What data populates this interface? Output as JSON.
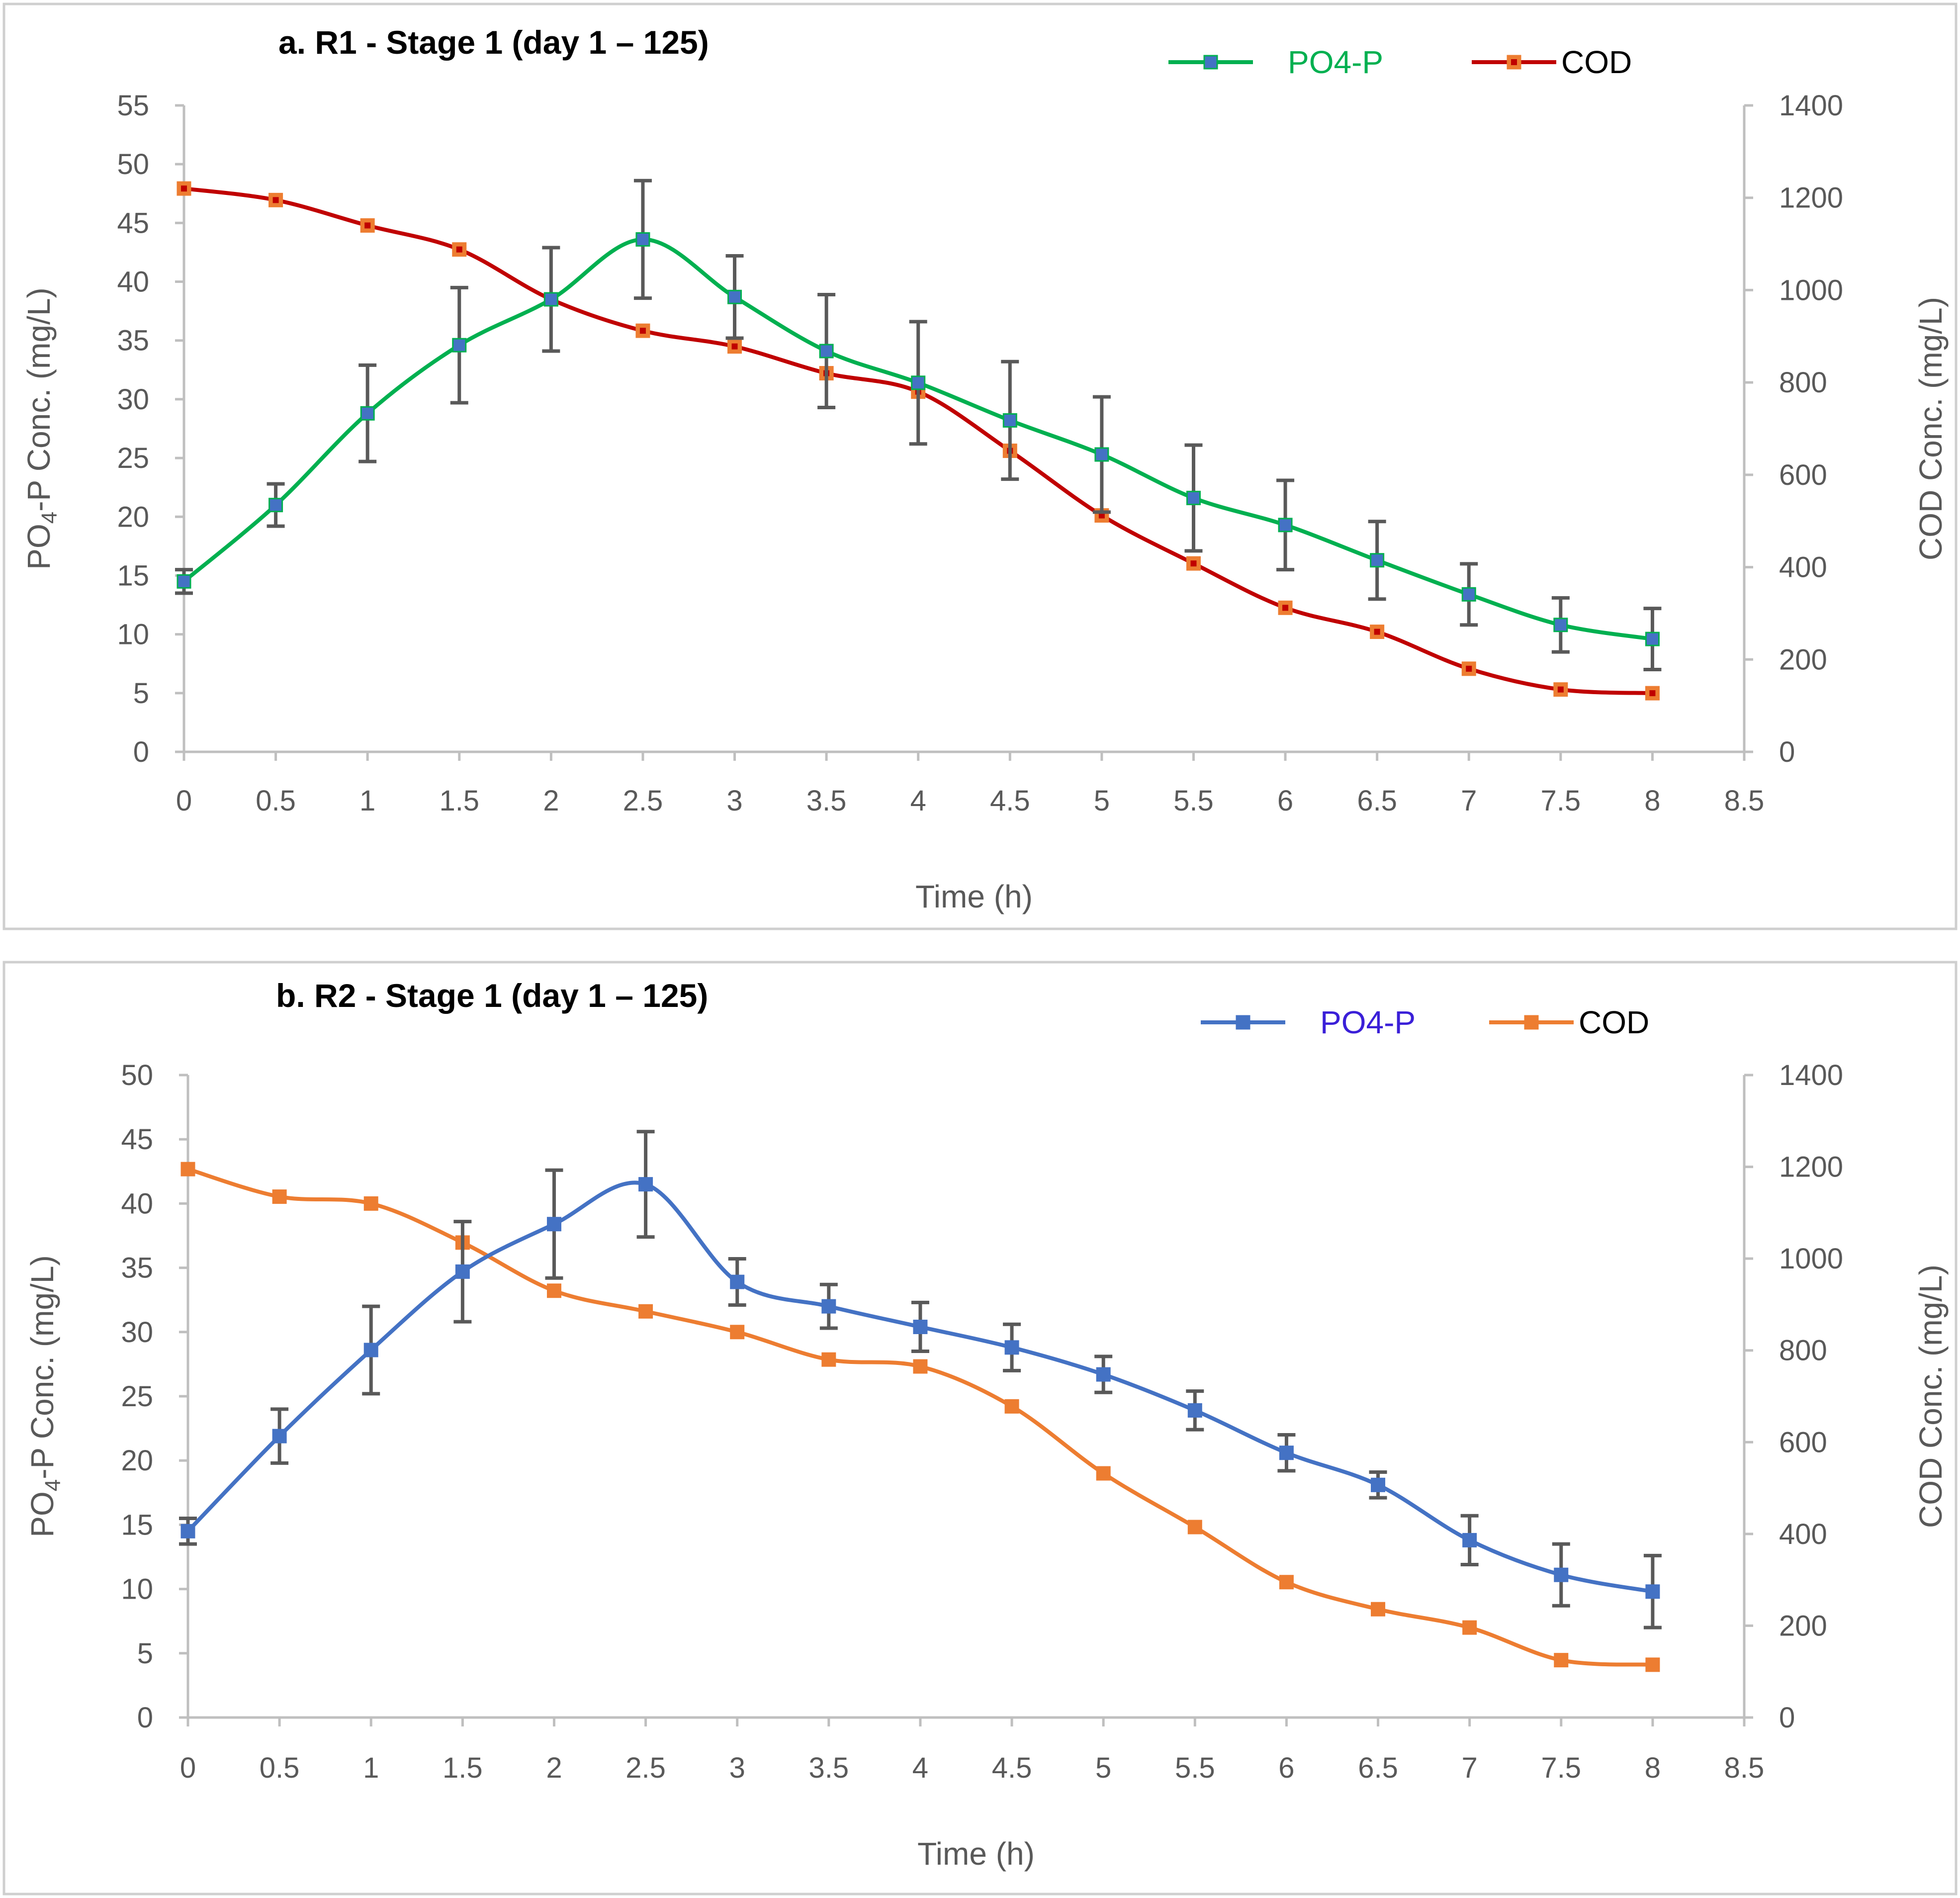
{
  "chart_data": [
    {
      "type": "line",
      "title": "a. R1 - Stage 1 (day 1 – 125)",
      "xlabel": "Time (h)",
      "ylabel_main": "PO",
      "ylabel_sub": "4",
      "ylabel_rest": "-P Conc. (mg/L)",
      "y2label": "COD Conc. (mg/L)",
      "xlim": [
        0,
        8.5
      ],
      "ylim": [
        0,
        55
      ],
      "y2lim": [
        0,
        1400
      ],
      "x_ticks": [
        0,
        0.5,
        1,
        1.5,
        2,
        2.5,
        3,
        3.5,
        4,
        4.5,
        5,
        5.5,
        6,
        6.5,
        7,
        7.5,
        8,
        8.5
      ],
      "y_ticks": [
        0,
        5,
        10,
        15,
        20,
        25,
        30,
        35,
        40,
        45,
        50,
        55
      ],
      "y2_ticks": [
        0,
        200,
        400,
        600,
        800,
        1000,
        1200,
        1400
      ],
      "legend_position": "top-right",
      "x": [
        0,
        0.5,
        1,
        1.5,
        2,
        2.5,
        3,
        3.5,
        4,
        4.5,
        5,
        5.5,
        6,
        6.5,
        7,
        7.5,
        8
      ],
      "series": [
        {
          "name": "PO4-P",
          "axis": "left",
          "line_color": "#00b050",
          "marker_fill": "#4472c4",
          "legend_color": "#00b050",
          "values": [
            14.5,
            21.0,
            28.8,
            34.6,
            38.5,
            43.6,
            38.7,
            34.1,
            31.4,
            28.2,
            25.3,
            21.6,
            19.3,
            16.3,
            13.4,
            10.8,
            9.6
          ],
          "errors": [
            1.0,
            1.8,
            4.1,
            4.9,
            4.4,
            5.0,
            3.5,
            4.8,
            5.2,
            5.0,
            4.9,
            4.5,
            3.8,
            3.3,
            2.6,
            2.3,
            2.6
          ]
        },
        {
          "name": "COD",
          "axis": "right",
          "line_color": "#c00000",
          "marker_fill": "#ed7d31",
          "marker_center": "#c00000",
          "legend_color": "#000000",
          "values": [
            1220,
            1195,
            1140,
            1088,
            980,
            912,
            878,
            820,
            780,
            652,
            512,
            408,
            312,
            260,
            180,
            135,
            127
          ]
        }
      ]
    },
    {
      "type": "line",
      "title": "b. R2 - Stage 1 (day 1 – 125)",
      "xlabel": "Time (h)",
      "ylabel_main": "PO",
      "ylabel_sub": "4",
      "ylabel_rest": "-P Conc. (mg/L)",
      "y2label": "COD Conc. (mg/L)",
      "xlim": [
        0,
        8.5
      ],
      "ylim": [
        0,
        50
      ],
      "y2lim": [
        0,
        1400
      ],
      "x_ticks": [
        0,
        0.5,
        1,
        1.5,
        2,
        2.5,
        3,
        3.5,
        4,
        4.5,
        5,
        5.5,
        6,
        6.5,
        7,
        7.5,
        8,
        8.5
      ],
      "y_ticks": [
        0,
        5,
        10,
        15,
        20,
        25,
        30,
        35,
        40,
        45,
        50
      ],
      "y2_ticks": [
        0,
        200,
        400,
        600,
        800,
        1000,
        1200,
        1400
      ],
      "legend_position": "top-right",
      "x": [
        0,
        0.5,
        1,
        1.5,
        2,
        2.5,
        3,
        3.5,
        4,
        4.5,
        5,
        5.5,
        6,
        6.5,
        7,
        7.5,
        8
      ],
      "series": [
        {
          "name": "PO4-P",
          "axis": "left",
          "line_color": "#4472c4",
          "marker_fill": "#4472c4",
          "legend_color": "#3a1fd8",
          "values": [
            14.5,
            21.9,
            28.6,
            34.7,
            38.4,
            41.5,
            33.9,
            32.0,
            30.4,
            28.8,
            26.7,
            23.9,
            20.6,
            18.1,
            13.8,
            11.1,
            9.8
          ],
          "errors": [
            1.0,
            2.1,
            3.4,
            3.9,
            4.2,
            4.1,
            1.8,
            1.7,
            1.9,
            1.8,
            1.4,
            1.5,
            1.4,
            1.0,
            1.9,
            2.4,
            2.8
          ]
        },
        {
          "name": "COD",
          "axis": "right",
          "line_color": "#ed7d31",
          "marker_fill": "#ed7d31",
          "legend_color": "#000000",
          "values": [
            1195,
            1135,
            1120,
            1035,
            930,
            885,
            840,
            780,
            765,
            678,
            532,
            415,
            295,
            236,
            196,
            125,
            115
          ]
        }
      ]
    }
  ]
}
